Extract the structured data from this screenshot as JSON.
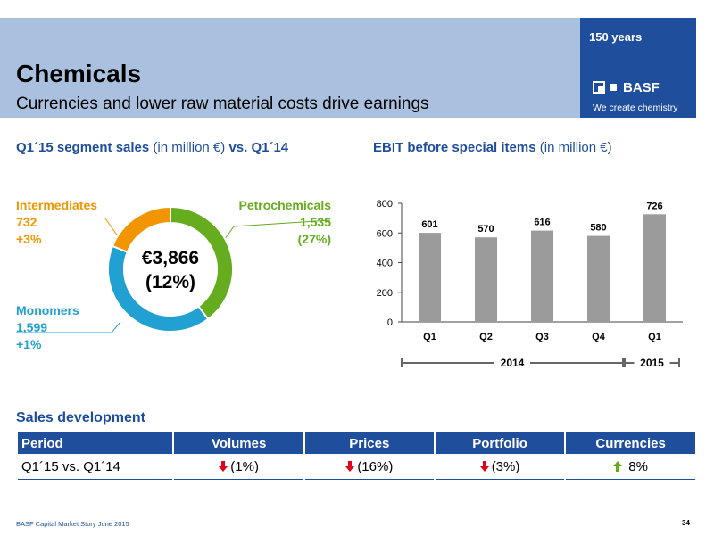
{
  "header": {
    "title": "Chemicals",
    "subtitle": "Currencies and lower raw material costs drive earnings"
  },
  "brand": {
    "years": "150 years",
    "logo_text": "BASF",
    "tagline": "We create chemistry",
    "color": "#1f4e9c"
  },
  "segment_sales": {
    "heading": "Q1´15 segment sales",
    "unit": " (in million €) ",
    "comparison": "vs. Q1´14",
    "center_value": "€3,866",
    "center_change": "(12%)",
    "segments": [
      {
        "name": "Petrochemicals",
        "value": "1,535",
        "change": "(27%)",
        "color": "#65ac1e"
      },
      {
        "name": "Monomers",
        "value": "1,599",
        "change": "+1%",
        "color": "#21a0d2"
      },
      {
        "name": "Intermediates",
        "value": "732",
        "change": "+3%",
        "color": "#f39500"
      }
    ]
  },
  "ebit": {
    "heading": "EBIT before special items",
    "unit": " (in million €)"
  },
  "chart_data": {
    "type": "bar",
    "categories": [
      "Q1",
      "Q2",
      "Q3",
      "Q4",
      "Q1"
    ],
    "values": [
      601,
      570,
      616,
      580,
      726
    ],
    "data_labels": [
      "601",
      "570",
      "616",
      "580",
      "726"
    ],
    "yticks": [
      "0",
      "200",
      "400",
      "600",
      "800"
    ],
    "ylim": [
      0,
      800
    ],
    "groups": [
      {
        "label": "2014",
        "categories": [
          0,
          1,
          2,
          3
        ]
      },
      {
        "label": "2015",
        "categories": [
          4
        ]
      }
    ],
    "bar_color": "#9b9b9b",
    "donut": [
      1535,
      1599,
      732
    ]
  },
  "sales_development": {
    "heading": "Sales development",
    "columns": [
      "Period",
      "Volumes",
      "Prices",
      "Portfolio",
      "Currencies"
    ],
    "row": {
      "period": "Q1´15 vs. Q1´14",
      "volumes": "(1%)",
      "prices": "(16%)",
      "portfolio": "(3%)",
      "currencies": "8%"
    },
    "arrow_colors": {
      "down": "#e2001a",
      "up": "#65ac1e"
    }
  },
  "footer": {
    "text": "BASF Capital Market Story June 2015",
    "page": "34"
  }
}
